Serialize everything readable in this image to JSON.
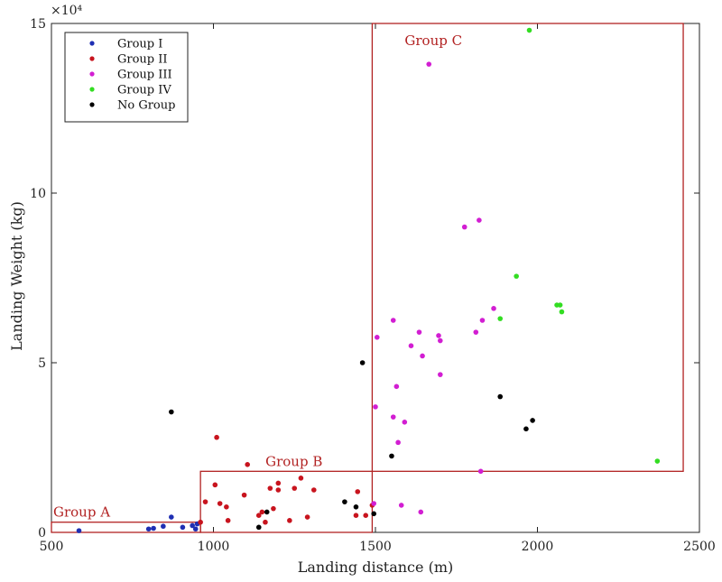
{
  "chart_data": {
    "type": "scatter",
    "title": "",
    "xlabel": "Landing distance (m)",
    "ylabel": "Landing Weight (kg)",
    "y_multiplier_label": "×10⁴",
    "xlim": [
      500,
      2500
    ],
    "ylim": [
      0,
      15
    ],
    "xticks": [
      500,
      1000,
      1500,
      2000,
      2500
    ],
    "yticks": [
      0,
      5,
      10,
      15
    ],
    "ytick_labels": [
      "0",
      "5",
      "10",
      "15"
    ],
    "grid": false,
    "legend_position": "top-left",
    "series": [
      {
        "name": "Group I",
        "color": "#1f2fb3",
        "points": [
          [
            585,
            0.05
          ],
          [
            800,
            0.1
          ],
          [
            815,
            0.12
          ],
          [
            845,
            0.18
          ],
          [
            870,
            0.45
          ],
          [
            905,
            0.15
          ],
          [
            935,
            0.2
          ],
          [
            945,
            0.1
          ],
          [
            950,
            0.25
          ]
        ]
      },
      {
        "name": "Group II",
        "color": "#c8141e",
        "points": [
          [
            960,
            0.3
          ],
          [
            975,
            0.9
          ],
          [
            1005,
            1.4
          ],
          [
            1010,
            2.8
          ],
          [
            1020,
            0.85
          ],
          [
            1040,
            0.75
          ],
          [
            1045,
            0.35
          ],
          [
            1095,
            1.1
          ],
          [
            1105,
            2.0
          ],
          [
            1140,
            0.5
          ],
          [
            1150,
            0.6
          ],
          [
            1160,
            0.3
          ],
          [
            1175,
            1.3
          ],
          [
            1185,
            0.7
          ],
          [
            1200,
            1.25
          ],
          [
            1200,
            1.45
          ],
          [
            1235,
            0.35
          ],
          [
            1250,
            1.3
          ],
          [
            1270,
            1.6
          ],
          [
            1290,
            0.45
          ],
          [
            1310,
            1.25
          ],
          [
            1440,
            0.5
          ],
          [
            1445,
            1.2
          ],
          [
            1470,
            0.5
          ],
          [
            1490,
            0.8
          ]
        ]
      },
      {
        "name": "Group III",
        "color": "#d21ed2",
        "points": [
          [
            1495,
            0.85
          ],
          [
            1500,
            3.7
          ],
          [
            1505,
            5.75
          ],
          [
            1555,
            3.4
          ],
          [
            1555,
            6.25
          ],
          [
            1565,
            4.3
          ],
          [
            1570,
            2.65
          ],
          [
            1580,
            0.8
          ],
          [
            1590,
            3.25
          ],
          [
            1610,
            5.5
          ],
          [
            1635,
            5.9
          ],
          [
            1640,
            0.6
          ],
          [
            1645,
            5.2
          ],
          [
            1665,
            13.8
          ],
          [
            1695,
            5.8
          ],
          [
            1700,
            5.65
          ],
          [
            1700,
            4.65
          ],
          [
            1775,
            9.0
          ],
          [
            1810,
            5.9
          ],
          [
            1820,
            9.2
          ],
          [
            1825,
            1.8
          ],
          [
            1830,
            6.25
          ],
          [
            1865,
            6.6
          ]
        ]
      },
      {
        "name": "Group IV",
        "color": "#33dd22",
        "points": [
          [
            1885,
            6.3
          ],
          [
            1935,
            7.55
          ],
          [
            1975,
            14.8
          ],
          [
            2060,
            6.7
          ],
          [
            2070,
            6.7
          ],
          [
            2075,
            6.5
          ],
          [
            2370,
            2.1
          ]
        ]
      },
      {
        "name": "No Group",
        "color": "#000000",
        "points": [
          [
            870,
            3.55
          ],
          [
            1140,
            0.15
          ],
          [
            1165,
            0.6
          ],
          [
            1405,
            0.9
          ],
          [
            1440,
            0.75
          ],
          [
            1460,
            5.0
          ],
          [
            1495,
            0.55
          ],
          [
            1550,
            2.25
          ],
          [
            1885,
            4.0
          ],
          [
            1965,
            3.05
          ],
          [
            1985,
            3.3
          ]
        ]
      }
    ],
    "annotations": [
      {
        "label": "Group A",
        "x0": 500,
        "x1": 960,
        "y0": 0,
        "y1": 0.3
      },
      {
        "label": "Group B",
        "x0": 960,
        "x1": 1490,
        "y0": 0,
        "y1": 1.8
      },
      {
        "label": "Group C",
        "x0": 1490,
        "x1": 2450,
        "y0": 1.8,
        "y1": 15
      }
    ],
    "annotation_color": "#b22222"
  }
}
